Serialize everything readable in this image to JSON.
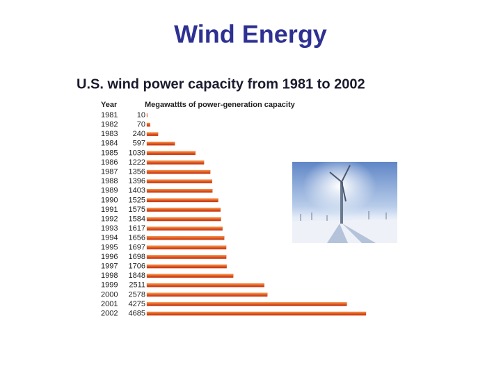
{
  "chart_data": {
    "type": "bar",
    "orientation": "horizontal",
    "title": "Wind Energy",
    "subtitle": "U.S. wind power capacity from 1981 to 2002",
    "ylabel": "Year",
    "xlabel": "Megawattts of power-generation capacity",
    "categories": [
      "1981",
      "1982",
      "1983",
      "1984",
      "1985",
      "1986",
      "1987",
      "1988",
      "1989",
      "1990",
      "1991",
      "1992",
      "1993",
      "1994",
      "1995",
      "1996",
      "1997",
      "1998",
      "1999",
      "2000",
      "2001",
      "2002"
    ],
    "values": [
      10,
      70,
      240,
      597,
      1039,
      1222,
      1356,
      1396,
      1403,
      1525,
      1575,
      1584,
      1617,
      1656,
      1697,
      1698,
      1706,
      1848,
      2511,
      2578,
      4275,
      4685
    ],
    "color": "#e2561f"
  }
}
